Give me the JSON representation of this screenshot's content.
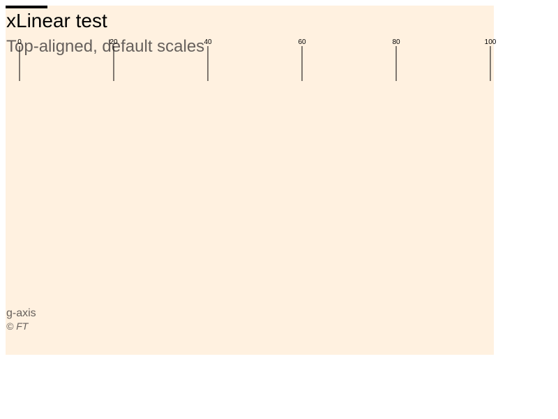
{
  "chart_data": {
    "type": "axis",
    "title": "xLinear test",
    "subtitle": "Top-aligned, default scales",
    "note": "g-axis",
    "source": "© FT",
    "x_axis": {
      "position": "top",
      "scale": "linear",
      "domain": [
        0,
        100
      ],
      "ticks": [
        0,
        20,
        40,
        60,
        80,
        100
      ],
      "tick_labels": [
        "0",
        "20",
        "40",
        "60",
        "80",
        "100"
      ]
    },
    "colors": {
      "background": "#fff1e0",
      "text_primary": "#000000",
      "text_secondary": "#66605c",
      "tick": "#000000"
    }
  }
}
